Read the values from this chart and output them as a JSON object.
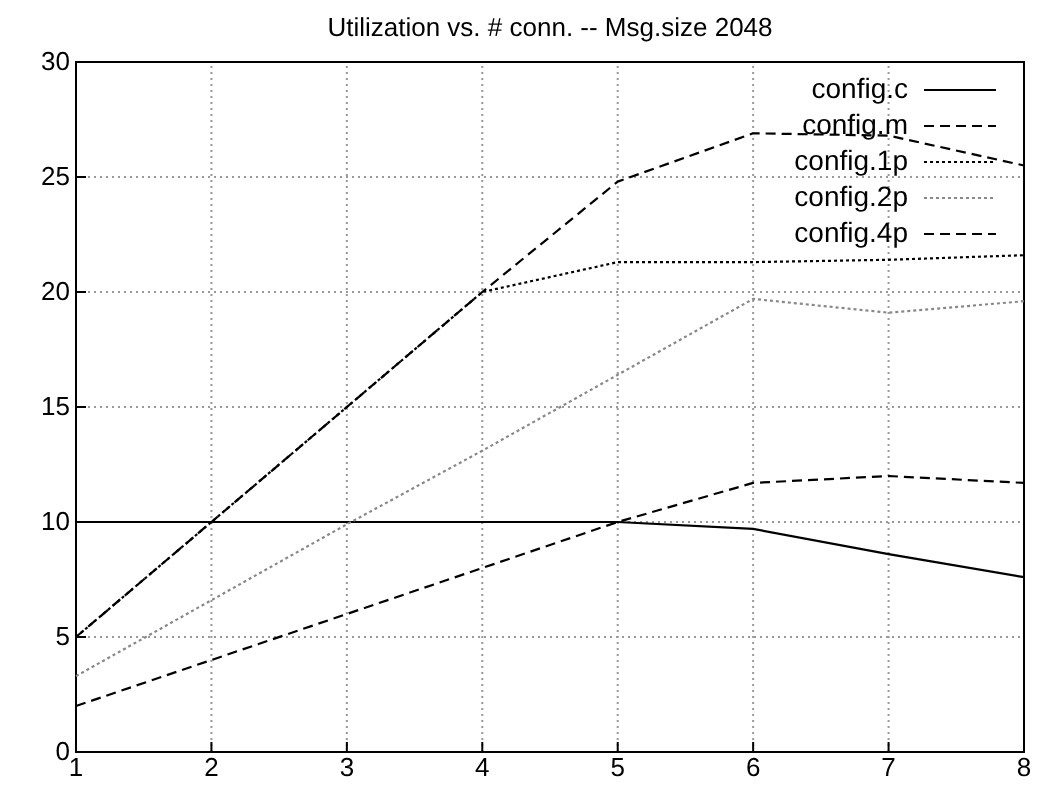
{
  "chart_data": {
    "type": "line",
    "title": "Utilization vs. # conn. -- Msg.size 2048",
    "x": [
      1,
      2,
      3,
      4,
      5,
      6,
      7,
      8
    ],
    "series": [
      {
        "name": "config.c",
        "color": "#000000",
        "line_style": "solid",
        "values": [
          10,
          10,
          10,
          10,
          10,
          9.7,
          8.6,
          7.6
        ]
      },
      {
        "name": "config.m",
        "color": "#000000",
        "line_style": "dashed",
        "values": [
          2,
          4,
          6,
          8,
          10,
          11.7,
          12,
          11.7
        ]
      },
      {
        "name": "config.1p",
        "color": "#000000",
        "line_style": "dotted",
        "values": [
          5,
          10,
          15,
          20,
          21.3,
          21.3,
          21.4,
          21.6
        ]
      },
      {
        "name": "config.2p",
        "color": "#888888",
        "line_style": "dotted",
        "values": [
          3.3,
          6.6,
          9.9,
          13.1,
          16.4,
          19.7,
          19.1,
          19.6
        ]
      },
      {
        "name": "config.4p",
        "color": "#000000",
        "line_style": "dashed",
        "values": [
          5,
          10,
          15,
          20,
          24.8,
          26.9,
          26.8,
          25.5
        ]
      }
    ],
    "xlim": [
      1,
      8
    ],
    "xticks": [
      1,
      2,
      3,
      4,
      5,
      6,
      7,
      8
    ],
    "ylim": [
      0,
      30
    ],
    "yticks": [
      0,
      5,
      10,
      15,
      20,
      25,
      30
    ],
    "grid": true,
    "legend": "top right",
    "marker": "none"
  }
}
